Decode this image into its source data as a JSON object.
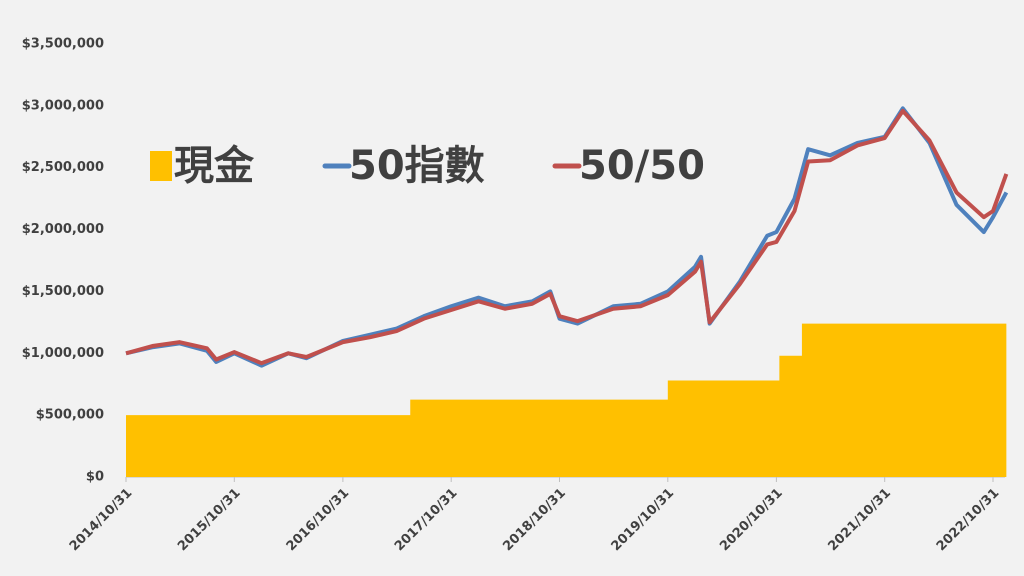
{
  "chart_data": {
    "type": "line",
    "ylim": [
      0,
      3500000
    ],
    "yticks": [
      {
        "value": 0,
        "label": "$0"
      },
      {
        "value": 500000,
        "label": "$500,000"
      },
      {
        "value": 1000000,
        "label": "$1,000,000"
      },
      {
        "value": 1500000,
        "label": "$1,500,000"
      },
      {
        "value": 2000000,
        "label": "$2,000,000"
      },
      {
        "value": 2500000,
        "label": "$2,500,000"
      },
      {
        "value": 3000000,
        "label": "$3,000,000"
      },
      {
        "value": 3500000,
        "label": "$3,500,000"
      }
    ],
    "xticks": [
      "2014/10/31",
      "2015/10/31",
      "2016/10/31",
      "2017/10/31",
      "2018/10/31",
      "2019/10/31",
      "2020/10/31",
      "2021/10/31",
      "2022/10/31"
    ],
    "legend": "upper left",
    "x": [
      "2014/10/31",
      "2015/01/31",
      "2015/04/30",
      "2015/07/31",
      "2015/08/31",
      "2015/10/31",
      "2016/01/31",
      "2016/04/30",
      "2016/06/30",
      "2016/10/31",
      "2017/01/31",
      "2017/04/30",
      "2017/07/31",
      "2017/10/31",
      "2018/01/31",
      "2018/04/30",
      "2018/07/31",
      "2018/09/30",
      "2018/10/31",
      "2018/12/31",
      "2019/04/30",
      "2019/07/31",
      "2019/10/31",
      "2020/01/31",
      "2020/02/20",
      "2020/03/20",
      "2020/06/30",
      "2020/09/30",
      "2020/10/31",
      "2020/12/31",
      "2021/02/15",
      "2021/04/30",
      "2021/07/31",
      "2021/10/31",
      "2021/12/31",
      "2022/03/31",
      "2022/06/30",
      "2022/09/30",
      "2022/10/31",
      "2022/12/15"
    ],
    "series": [
      {
        "name": "現金",
        "type": "area",
        "step": true,
        "color": "#ffc000",
        "x": [
          "2014/10/31",
          "2017/06/15",
          "2019/10/31",
          "2020/11/10",
          "2021/01/25",
          "2022/12/15"
        ],
        "values": [
          500000,
          625000,
          780000,
          980000,
          1240000,
          1240000
        ]
      },
      {
        "name": "50指數",
        "color": "#4f81bd",
        "values": [
          1000000,
          1050000,
          1080000,
          1020000,
          930000,
          1000000,
          900000,
          1000000,
          960000,
          1100000,
          1150000,
          1200000,
          1300000,
          1380000,
          1450000,
          1380000,
          1420000,
          1500000,
          1280000,
          1240000,
          1380000,
          1400000,
          1500000,
          1700000,
          1780000,
          1240000,
          1580000,
          1950000,
          1980000,
          2250000,
          2650000,
          2600000,
          2700000,
          2750000,
          2980000,
          2700000,
          2200000,
          1980000,
          2100000,
          2300000
        ]
      },
      {
        "name": "50/50",
        "color": "#c0504d",
        "values": [
          1000000,
          1060000,
          1090000,
          1040000,
          950000,
          1010000,
          920000,
          1000000,
          970000,
          1090000,
          1130000,
          1180000,
          1280000,
          1350000,
          1420000,
          1360000,
          1400000,
          1480000,
          1300000,
          1260000,
          1360000,
          1380000,
          1470000,
          1660000,
          1740000,
          1250000,
          1560000,
          1880000,
          1900000,
          2150000,
          2550000,
          2560000,
          2680000,
          2740000,
          2960000,
          2720000,
          2300000,
          2100000,
          2150000,
          2450000
        ]
      }
    ]
  }
}
